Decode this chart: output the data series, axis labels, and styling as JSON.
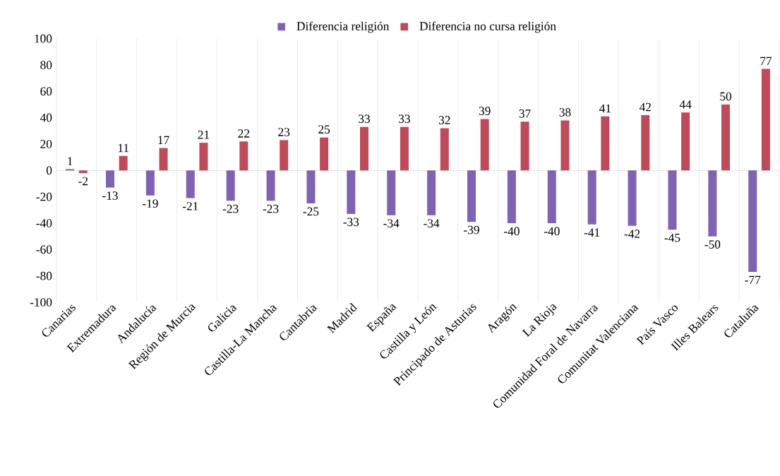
{
  "chart_data": {
    "type": "bar",
    "categories": [
      "Canarias",
      "Extremadura",
      "Andalucía",
      "Región de Murcia",
      "Galicia",
      "Castilla-La Mancha",
      "Cantabria",
      "Madrid",
      "España",
      "Castilla y León",
      "Principado de Asturias",
      "Aragón",
      "La Rioja",
      "Comunidad Foral de Navarra",
      "Comunitat Valenciana",
      "País Vasco",
      "Illes Balears",
      "Cataluña"
    ],
    "series": [
      {
        "name": "Diferencia religión",
        "color": "#7f63b2",
        "values": [
          1,
          -13,
          -19,
          -21,
          -23,
          -23,
          -25,
          -33,
          -34,
          -34,
          -39,
          -40,
          -40,
          -41,
          -42,
          -45,
          -50,
          -77
        ]
      },
      {
        "name": "Diferencia no cursa religión",
        "color": "#be4b5a",
        "values": [
          -2,
          11,
          17,
          21,
          22,
          23,
          25,
          33,
          33,
          32,
          39,
          37,
          38,
          41,
          42,
          44,
          50,
          77
        ]
      }
    ],
    "ylim": [
      -100,
      100
    ],
    "yticks": [
      -100,
      -80,
      -60,
      -40,
      -20,
      0,
      20,
      40,
      60,
      80,
      100
    ],
    "data_labels": true,
    "grid": "x",
    "legend": "top"
  }
}
